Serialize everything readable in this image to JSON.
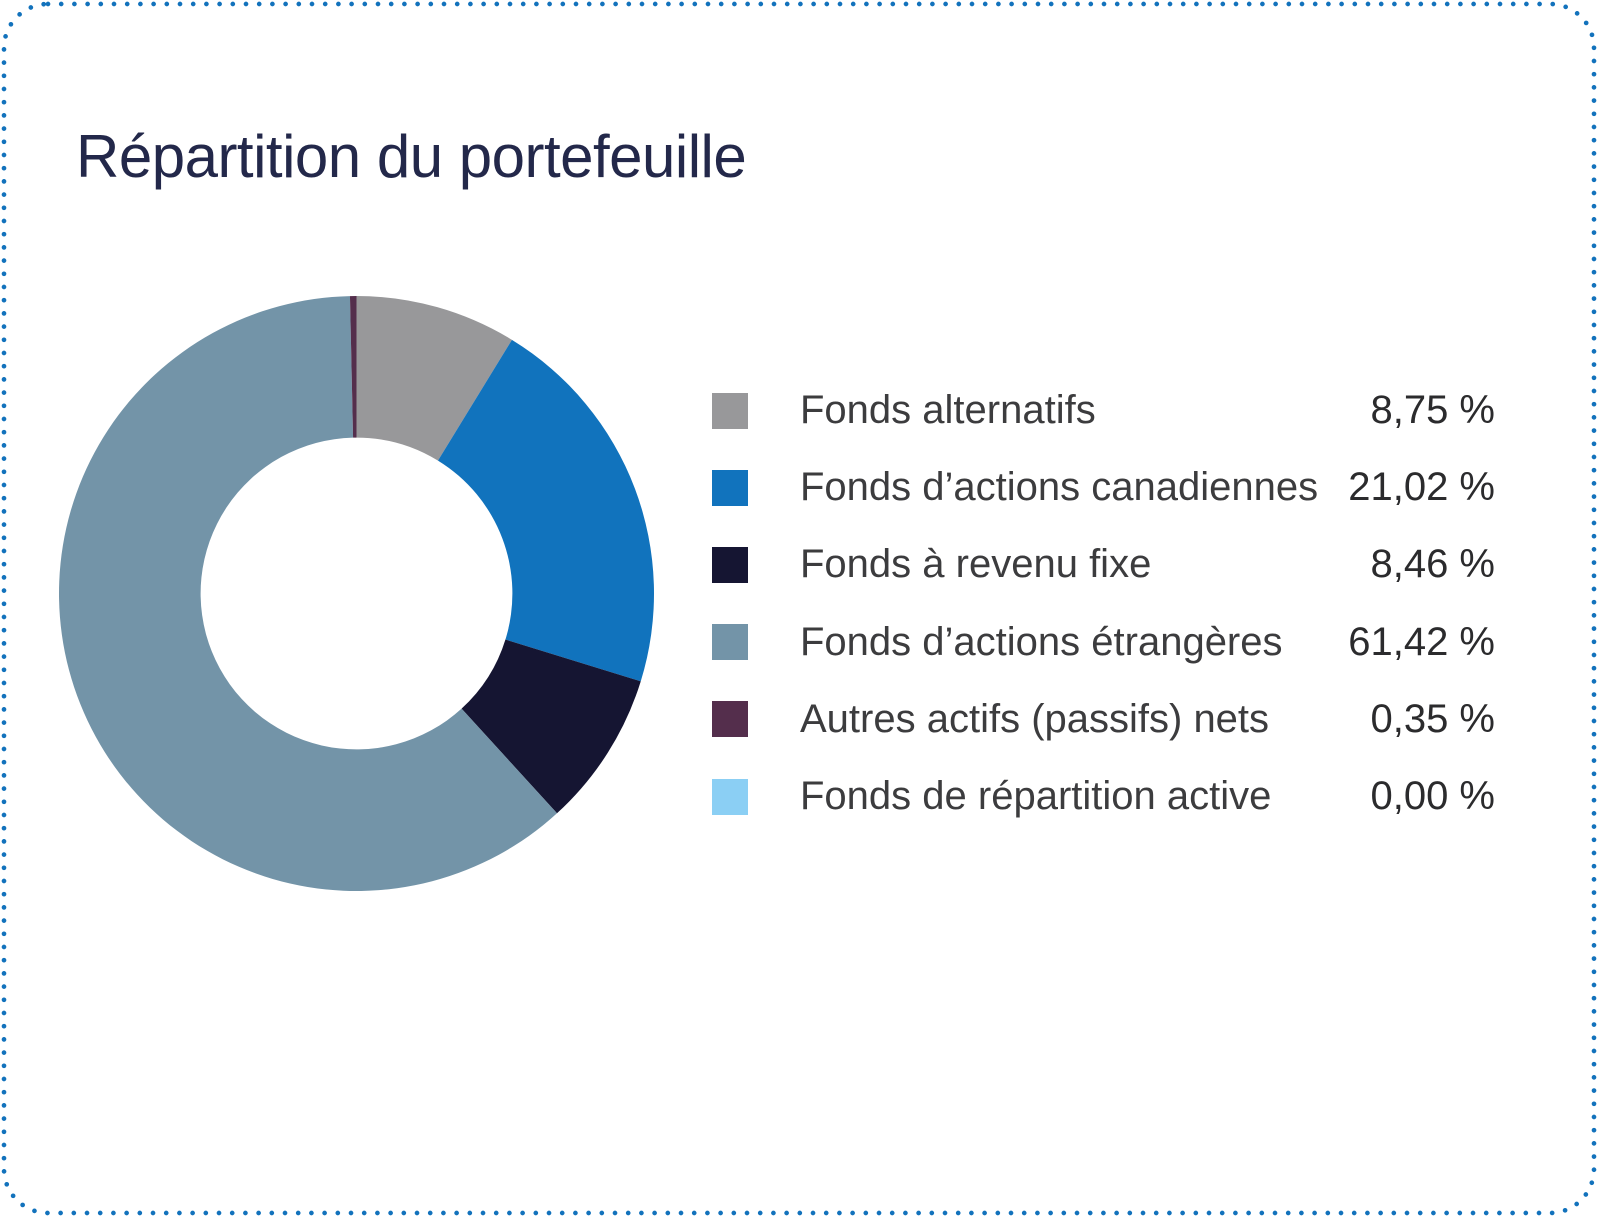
{
  "card": {
    "title": "Répartition du portefeuille"
  },
  "colors": {
    "border_dots": "#1272bc",
    "title_text": "#23284a",
    "label_text": "#3c3c3e",
    "value_text": "#2b2b2d",
    "background": "#ffffff"
  },
  "chart_data": {
    "type": "pie",
    "subtype": "donut",
    "title": "Répartition du portefeuille",
    "unit": "%",
    "direction": "clockwise",
    "start_angle_deg": 0,
    "inner_radius_ratio": 0.524,
    "legend_position": "right",
    "series": [
      {
        "label": "Fonds alternatifs",
        "value": 8.75,
        "display": "8,75 %",
        "color": "#98989A"
      },
      {
        "label": "Fonds d’actions canadiennes",
        "value": 21.02,
        "display": "21,02 %",
        "color": "#1173BD"
      },
      {
        "label": "Fonds à revenu fixe",
        "value": 8.46,
        "display": "8,46 %",
        "color": "#151532"
      },
      {
        "label": "Fonds d’actions étrangères",
        "value": 61.42,
        "display": "61,42 %",
        "color": "#7394A8"
      },
      {
        "label": "Autres actifs (passifs) nets",
        "value": 0.35,
        "display": "0,35 %",
        "color": "#542E4C"
      },
      {
        "label": "Fonds de répartition active",
        "value": 0.0,
        "display": "0,00 %",
        "color": "#8BCFF4"
      }
    ]
  }
}
